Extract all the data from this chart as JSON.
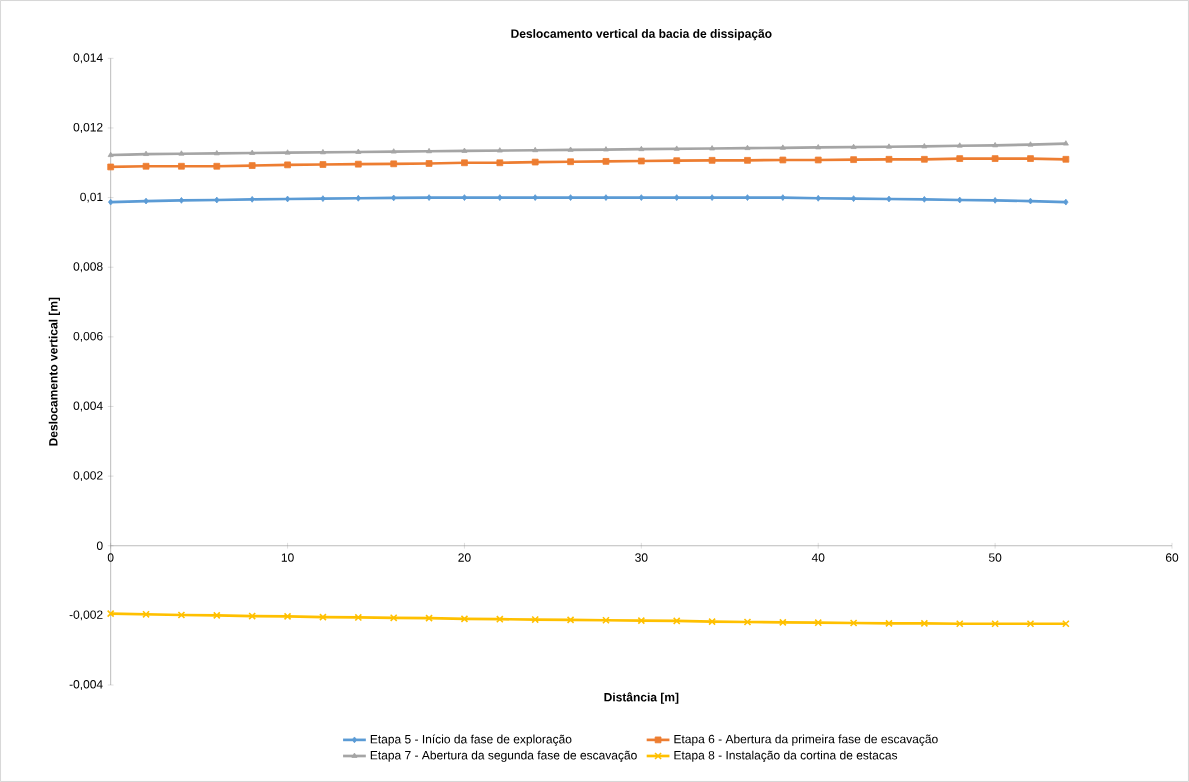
{
  "chart_data": {
    "type": "line",
    "title": "Deslocamento vertical da bacia de dissipação",
    "xlabel": "Distância [m]",
    "ylabel": "Deslocamento vertical [m]",
    "x": [
      0,
      2,
      4,
      6,
      8,
      10,
      12,
      14,
      16,
      18,
      20,
      22,
      24,
      26,
      28,
      30,
      32,
      34,
      36,
      38,
      40,
      42,
      44,
      46,
      48,
      50,
      52,
      54
    ],
    "series": [
      {
        "name": "Etapa 5 - Início da fase de exploração",
        "color": "#5b9bd5",
        "marker": "diamond",
        "values": [
          0.00987,
          0.0099,
          0.00992,
          0.00993,
          0.00995,
          0.00996,
          0.00997,
          0.00998,
          0.00999,
          0.01,
          0.01,
          0.01,
          0.01,
          0.01,
          0.01,
          0.01,
          0.01,
          0.01,
          0.01,
          0.01,
          0.00998,
          0.00997,
          0.00996,
          0.00995,
          0.00993,
          0.00992,
          0.0099,
          0.00987
        ]
      },
      {
        "name": "Etapa 6 - Abertura da primeira fase de escavação",
        "color": "#ed7d31",
        "marker": "square",
        "values": [
          0.01088,
          0.0109,
          0.0109,
          0.0109,
          0.01092,
          0.01094,
          0.01095,
          0.01096,
          0.01097,
          0.01098,
          0.011,
          0.011,
          0.01102,
          0.01103,
          0.01104,
          0.01105,
          0.01106,
          0.01107,
          0.01107,
          0.01108,
          0.01108,
          0.01109,
          0.0111,
          0.0111,
          0.01112,
          0.01112,
          0.01112,
          0.0111
        ]
      },
      {
        "name": "Etapa 7 - Abertura da segunda fase de escavação",
        "color": "#a5a5a5",
        "marker": "triangle",
        "values": [
          0.01122,
          0.01125,
          0.01126,
          0.01127,
          0.01128,
          0.01129,
          0.0113,
          0.01131,
          0.01132,
          0.01133,
          0.01134,
          0.01135,
          0.01136,
          0.01137,
          0.01138,
          0.01139,
          0.0114,
          0.01141,
          0.01142,
          0.01143,
          0.01144,
          0.01145,
          0.01146,
          0.01147,
          0.01149,
          0.0115,
          0.01152,
          0.01155
        ]
      },
      {
        "name": "Etapa 8 - Instalação da cortina de estacas",
        "color": "#ffc000",
        "marker": "cross",
        "values": [
          -0.00195,
          -0.00197,
          -0.00199,
          -0.002,
          -0.00202,
          -0.00203,
          -0.00205,
          -0.00206,
          -0.00207,
          -0.00208,
          -0.0021,
          -0.00211,
          -0.00212,
          -0.00213,
          -0.00214,
          -0.00215,
          -0.00216,
          -0.00218,
          -0.00219,
          -0.0022,
          -0.00221,
          -0.00222,
          -0.00223,
          -0.00223,
          -0.00224,
          -0.00224,
          -0.00224,
          -0.00224
        ]
      }
    ],
    "xlim": [
      0,
      60
    ],
    "xticks": [
      0,
      10,
      20,
      30,
      40,
      50,
      60
    ],
    "ylim": [
      -0.004,
      0.014
    ],
    "yticks": [
      {
        "value": -0.004,
        "label": "-0,004"
      },
      {
        "value": -0.002,
        "label": "-0,002"
      },
      0,
      {
        "value": 0.002,
        "label": "0,002"
      },
      {
        "value": 0.004,
        "label": "0,004"
      },
      {
        "value": 0.006,
        "label": "0,006"
      },
      {
        "value": 0.008,
        "label": "0,008"
      },
      {
        "value": 0.01,
        "label": "0,01"
      },
      {
        "value": 0.012,
        "label": "0,012"
      },
      {
        "value": 0.014,
        "label": "0,014"
      }
    ],
    "grid": false,
    "legend": "bottom",
    "line_style": "solid"
  }
}
